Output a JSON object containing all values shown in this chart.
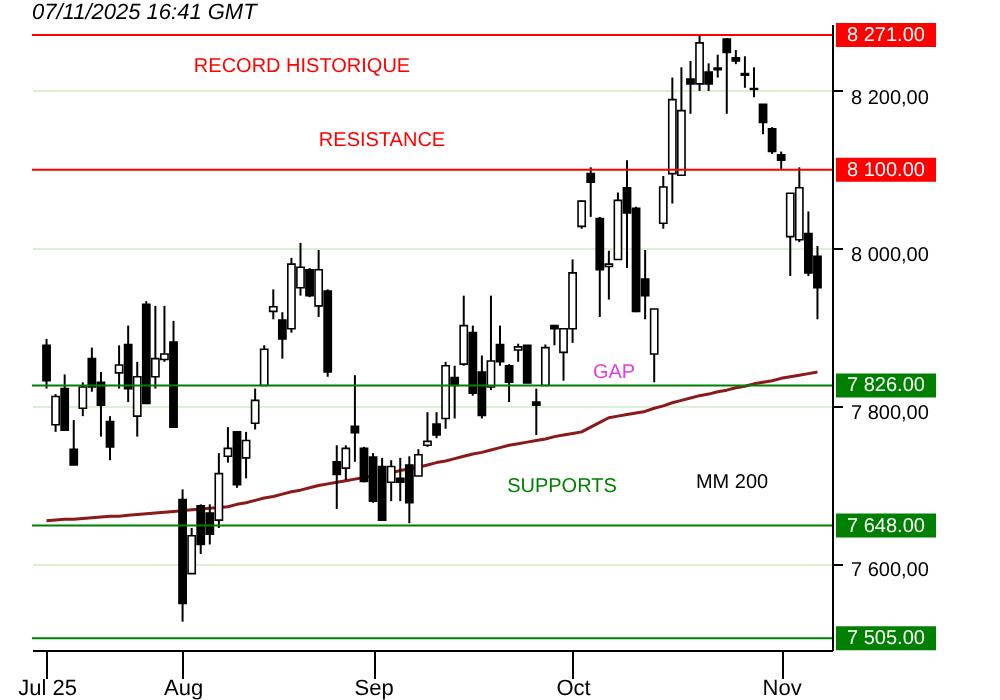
{
  "chart_data": {
    "type": "candlestick",
    "title": "07/11/2025 16:41 GMT",
    "categories": [
      "Jul 25",
      null,
      null,
      null,
      null,
      null,
      null,
      null,
      null,
      null,
      null,
      null,
      null,
      null,
      null,
      "Aug",
      null,
      null,
      null,
      null,
      null,
      null,
      null,
      null,
      null,
      null,
      null,
      null,
      null,
      null,
      null,
      null,
      null,
      null,
      null,
      null,
      "Sep",
      null,
      null,
      null,
      null,
      null,
      null,
      null,
      null,
      null,
      null,
      null,
      null,
      null,
      null,
      null,
      null,
      null,
      null,
      null,
      null,
      null,
      "Oct",
      null,
      null,
      null,
      null,
      null,
      null,
      null,
      null,
      null,
      null,
      null,
      null,
      null,
      null,
      null,
      null,
      null,
      null,
      null,
      null,
      null,
      null,
      "Nov",
      null,
      null,
      null,
      null
    ],
    "ohlc": [
      [
        7877,
        7885,
        7822,
        7832
      ],
      [
        7776,
        7815,
        7767,
        7812
      ],
      [
        7822,
        7840,
        7769,
        7769
      ],
      [
        7745,
        7782,
        7725,
        7725
      ],
      [
        7797,
        7830,
        7787,
        7824
      ],
      [
        7860,
        7874,
        7818,
        7824
      ],
      [
        7830,
        7843,
        7761,
        7801
      ],
      [
        7780,
        7787,
        7731,
        7748
      ],
      [
        7842,
        7877,
        7822,
        7852
      ],
      [
        7878,
        7902,
        7805,
        7822
      ],
      [
        7787,
        7856,
        7761,
        7837
      ],
      [
        7929,
        7933,
        7803,
        7803
      ],
      [
        7837,
        7927,
        7822,
        7860
      ],
      [
        7859,
        7927,
        7856,
        7866
      ],
      [
        7881,
        7908,
        7773,
        7773
      ],
      [
        7681,
        7694,
        7526,
        7549
      ],
      [
        7587,
        7645,
        7587,
        7635
      ],
      [
        7673,
        7675,
        7612,
        7624
      ],
      [
        7664,
        7675,
        7624,
        7637
      ],
      [
        7655,
        7740,
        7645,
        7714
      ],
      [
        7736,
        7773,
        7728,
        7746
      ],
      [
        7767,
        7767,
        7696,
        7700
      ],
      [
        7734,
        7767,
        7708,
        7756
      ],
      [
        7778,
        7822,
        7770,
        7807
      ],
      [
        7826,
        7877,
        7826,
        7872
      ],
      [
        7920,
        7948,
        7910,
        7926
      ],
      [
        7909,
        7919,
        7860,
        7885
      ],
      [
        7898,
        7988,
        7893,
        7980
      ],
      [
        7950,
        8007,
        7940,
        7976
      ],
      [
        7973,
        7975,
        7938,
        7940
      ],
      [
        7927,
        7998,
        7913,
        7973
      ],
      [
        7946,
        7948,
        7837,
        7843
      ],
      [
        7729,
        7750,
        7669,
        7713
      ],
      [
        7721,
        7750,
        7706,
        7746
      ],
      [
        7774,
        7839,
        7729,
        7766
      ],
      [
        7746,
        7748,
        7703,
        7704
      ],
      [
        7735,
        7740,
        7677,
        7679
      ],
      [
        7723,
        7734,
        7655,
        7655
      ],
      [
        7703,
        7731,
        7679,
        7723
      ],
      [
        7708,
        7734,
        7679,
        7703
      ],
      [
        7725,
        7736,
        7651,
        7677
      ],
      [
        7711,
        7745,
        7711,
        7738
      ],
      [
        7750,
        7792,
        7748,
        7755
      ],
      [
        7777,
        7792,
        7759,
        7763
      ],
      [
        7784,
        7856,
        7771,
        7851
      ],
      [
        7836,
        7851,
        7784,
        7826
      ],
      [
        7853,
        7940,
        7851,
        7902
      ],
      [
        7893,
        7902,
        7813,
        7816
      ],
      [
        7843,
        7864,
        7784,
        7788
      ],
      [
        7824,
        7940,
        7820,
        7857
      ],
      [
        7878,
        7902,
        7851,
        7856
      ],
      [
        7851,
        7853,
        7805,
        7830
      ],
      [
        7871,
        7879,
        7856,
        7875
      ],
      [
        7877,
        7877,
        7829,
        7829
      ],
      [
        7805,
        7822,
        7763,
        7801
      ],
      [
        7826,
        7878,
        7826,
        7874
      ],
      [
        7902,
        7903,
        7877,
        7898
      ],
      [
        7868,
        7899,
        7832,
        7898
      ],
      [
        7898,
        7986,
        7880,
        7969
      ],
      [
        8028,
        8061,
        8025,
        8060
      ],
      [
        8095,
        8103,
        8040,
        8084
      ],
      [
        8038,
        8040,
        7913,
        7973
      ],
      [
        7977,
        7997,
        7935,
        7980
      ],
      [
        7986,
        8071,
        7986,
        8061
      ],
      [
        8077,
        8112,
        7975,
        8045
      ],
      [
        8051,
        8053,
        7919,
        7920
      ],
      [
        7961,
        7998,
        7910,
        7940
      ],
      [
        7866,
        7923,
        7830,
        7923
      ],
      [
        8032,
        8092,
        8025,
        8078
      ],
      [
        8095,
        8217,
        8057,
        8189
      ],
      [
        8093,
        8230,
        8093,
        8175
      ],
      [
        8215,
        8238,
        8171,
        8209
      ],
      [
        8209,
        8271,
        8200,
        8261
      ],
      [
        8224,
        8235,
        8200,
        8209
      ],
      [
        8227,
        8246,
        8217,
        8229
      ],
      [
        8266,
        8267,
        8171,
        8249
      ],
      [
        8242,
        8252,
        8234,
        8238
      ],
      [
        8222,
        8244,
        8204,
        8220
      ],
      [
        8203,
        8230,
        8192,
        8202
      ],
      [
        8183,
        8183,
        8145,
        8160
      ],
      [
        8152,
        8154,
        8120,
        8123
      ],
      [
        8119,
        8123,
        8101,
        8112
      ],
      [
        8015,
        8070,
        7965,
        8070
      ],
      [
        8011,
        8103,
        8008,
        8077
      ],
      [
        8019,
        8047,
        7965,
        7969
      ],
      [
        7990,
        8003,
        7910,
        7950
      ]
    ],
    "series": [
      {
        "type": "line",
        "color": "#8b1a1a",
        "values": [
          7654,
          7655,
          7656,
          7656,
          7657,
          7658,
          7659,
          7660,
          7660,
          7661,
          7662,
          7663,
          7664,
          7665,
          7666,
          7667,
          7668,
          7669,
          7670,
          7671,
          7672,
          7675,
          7677,
          7680,
          7683,
          7685,
          7688,
          7691,
          7693,
          7696,
          7699,
          7701,
          7703,
          7705,
          7707,
          7709,
          7711,
          null,
          7715,
          7718,
          7720,
          7722,
          7725,
          7728,
          7730,
          7733,
          7736,
          7739,
          7741,
          7744,
          7747,
          7750,
          7752,
          7754,
          7756,
          7758,
          7761,
          7763,
          7765,
          7767,
          7773,
          7779,
          7785,
          7787,
          7789,
          7791,
          7793,
          7797,
          7800,
          7804,
          7807,
          7810,
          7813,
          7815,
          7818,
          7820,
          7823,
          7825,
          7828,
          7830,
          7832,
          7835,
          7837,
          7839,
          7841,
          7843
        ]
      }
    ],
    "ylim": [
      7490,
      8285
    ],
    "yticks": [
      {
        "value": 7600,
        "label": "7 600,00"
      },
      {
        "value": 7800,
        "label": "7 800,00"
      },
      {
        "value": 8000,
        "label": "8 000,00"
      },
      {
        "value": 8200,
        "label": "8 200,00"
      }
    ],
    "grid": "y",
    "ref_lines": [
      {
        "axis": "y",
        "value": 8271,
        "label": "8 271.00",
        "color": "#ff0000"
      },
      {
        "axis": "y",
        "value": 8100,
        "label": "8 100.00",
        "color": "#ff0000"
      },
      {
        "axis": "y",
        "value": 7826,
        "label": "7 826.00",
        "color": "#008000"
      },
      {
        "axis": "y",
        "value": 7648,
        "label": "7 648.00",
        "color": "#008000"
      },
      {
        "axis": "y",
        "value": 7505,
        "label": "7 505.00",
        "color": "#008000"
      }
    ],
    "annotations": [
      "RECORD HISTORIQUE",
      "RESISTANCE",
      "GAP",
      "SUPPORTS",
      "MM 200"
    ]
  }
}
